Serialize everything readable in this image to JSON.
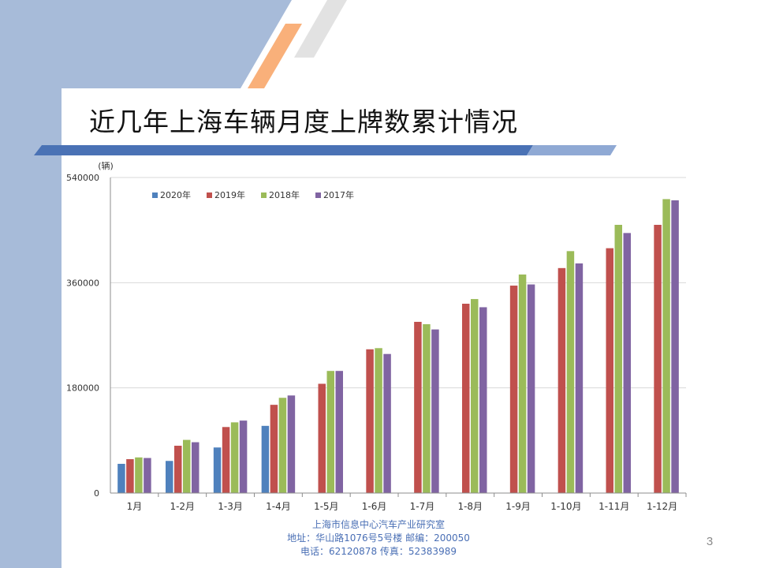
{
  "slide": {
    "title": "近几年上海车辆月度上牌数累计情况",
    "page_number": "3"
  },
  "footer": {
    "org": "上海市信息中心汽车产业研究室",
    "address": "地址：华山路1076号5号楼     邮编：200050",
    "phone": "电话：62120878   传真：52383989"
  },
  "colors": {
    "band": "#a7bbd9",
    "stripe_blue": "#4a72b5",
    "stripe_light": "#8fa9d4",
    "accent_orange": "#f9b07a",
    "accent_gray": "#e2e2e2",
    "footer_text": "#4a6fb5"
  },
  "chart_data": {
    "type": "bar",
    "title": "",
    "xlabel": "",
    "ylabel": "(辆)",
    "ylim": [
      0,
      540000
    ],
    "yticks": [
      0,
      180000,
      360000,
      540000
    ],
    "ytick_labels": [
      "0",
      "180000",
      "360000",
      "540000"
    ],
    "grid": true,
    "legend_position": "top-left",
    "categories": [
      "1月",
      "1-2月",
      "1-3月",
      "1-4月",
      "1-5月",
      "1-6月",
      "1-7月",
      "1-8月",
      "1-9月",
      "1-10月",
      "1-11月",
      "1-12月"
    ],
    "series": [
      {
        "name": "2020年",
        "color": "#4f81bd",
        "values": [
          50000,
          55000,
          78000,
          115000,
          null,
          null,
          null,
          null,
          null,
          null,
          null,
          null
        ]
      },
      {
        "name": "2019年",
        "color": "#c0504d",
        "values": [
          58000,
          81000,
          113000,
          151000,
          187000,
          246000,
          293000,
          324000,
          355000,
          385000,
          419000,
          459000
        ]
      },
      {
        "name": "2018年",
        "color": "#9bbb59",
        "values": [
          61000,
          91000,
          121000,
          163000,
          209000,
          248000,
          289000,
          332000,
          374000,
          414000,
          459000,
          503000
        ]
      },
      {
        "name": "2017年",
        "color": "#8064a2",
        "values": [
          60000,
          87000,
          124000,
          167000,
          209000,
          238000,
          280000,
          318000,
          357000,
          393000,
          445000,
          501000
        ]
      }
    ]
  }
}
